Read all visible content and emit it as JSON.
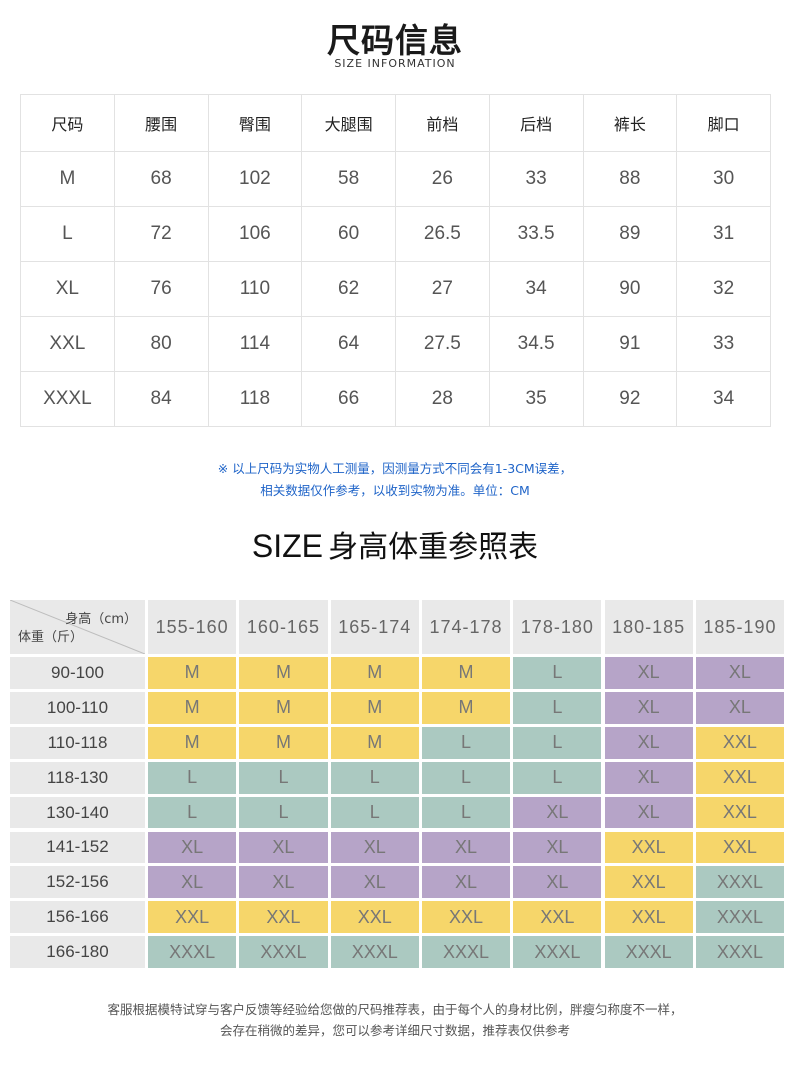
{
  "header": {
    "title": "尺码信息",
    "subtitle": "SIZE INFORMATION"
  },
  "size_table": {
    "columns": [
      "尺码",
      "腰围",
      "臀围",
      "大腿围",
      "前档",
      "后档",
      "裤长",
      "脚口"
    ],
    "rows": [
      [
        "M",
        "68",
        "102",
        "58",
        "26",
        "33",
        "88",
        "30"
      ],
      [
        "L",
        "72",
        "106",
        "60",
        "26.5",
        "33.5",
        "89",
        "31"
      ],
      [
        "XL",
        "76",
        "110",
        "62",
        "27",
        "34",
        "90",
        "32"
      ],
      [
        "XXL",
        "80",
        "114",
        "64",
        "27.5",
        "34.5",
        "91",
        "33"
      ],
      [
        "XXXL",
        "84",
        "118",
        "66",
        "28",
        "35",
        "92",
        "34"
      ]
    ]
  },
  "notes": {
    "line1": "※ 以上尺码为实物人工测量，因测量方式不同会有1-3CM误差，",
    "line2": "相关数据仅作参考，以收到实物为准。单位：CM"
  },
  "reference": {
    "title_en": "SIZE",
    "title_cn": "身高体重参照表",
    "corner_height": "身高（cm）",
    "corner_weight": "体重（斤）",
    "heights": [
      "155-160",
      "160-165",
      "165-174",
      "174-178",
      "178-180",
      "180-185",
      "185-190"
    ],
    "weights": [
      "90-100",
      "100-110",
      "110-118",
      "118-130",
      "130-140",
      "141-152",
      "152-156",
      "156-166",
      "166-180"
    ],
    "grid": [
      [
        "M",
        "M",
        "M",
        "M",
        "L",
        "XL",
        "XL"
      ],
      [
        "M",
        "M",
        "M",
        "M",
        "L",
        "XL",
        "XL"
      ],
      [
        "M",
        "M",
        "M",
        "L",
        "L",
        "XL",
        "XXL"
      ],
      [
        "L",
        "L",
        "L",
        "L",
        "L",
        "XL",
        "XXL"
      ],
      [
        "L",
        "L",
        "L",
        "L",
        "XL",
        "XL",
        "XXL"
      ],
      [
        "XL",
        "XL",
        "XL",
        "XL",
        "XL",
        "XXL",
        "XXL"
      ],
      [
        "XL",
        "XL",
        "XL",
        "XL",
        "XL",
        "XXL",
        "XXXL"
      ],
      [
        "XXL",
        "XXL",
        "XXL",
        "XXL",
        "XXL",
        "XXL",
        "XXXL"
      ],
      [
        "XXXL",
        "XXXL",
        "XXXL",
        "XXXL",
        "XXXL",
        "XXXL",
        "XXXL"
      ]
    ],
    "colors": {
      "yellow": "#f6d66a",
      "teal": "#abc9c1",
      "purple": "#b6a4c8",
      "header_gray": "#e9e9e9"
    }
  },
  "footer": {
    "line1": "客服根据模特试穿与客户反馈等经验给您做的尺码推荐表，由于每个人的身材比例，胖瘦匀称度不一样，",
    "line2": "会存在稍微的差异，您可以参考详细尺寸数据，推荐表仅供参考"
  }
}
